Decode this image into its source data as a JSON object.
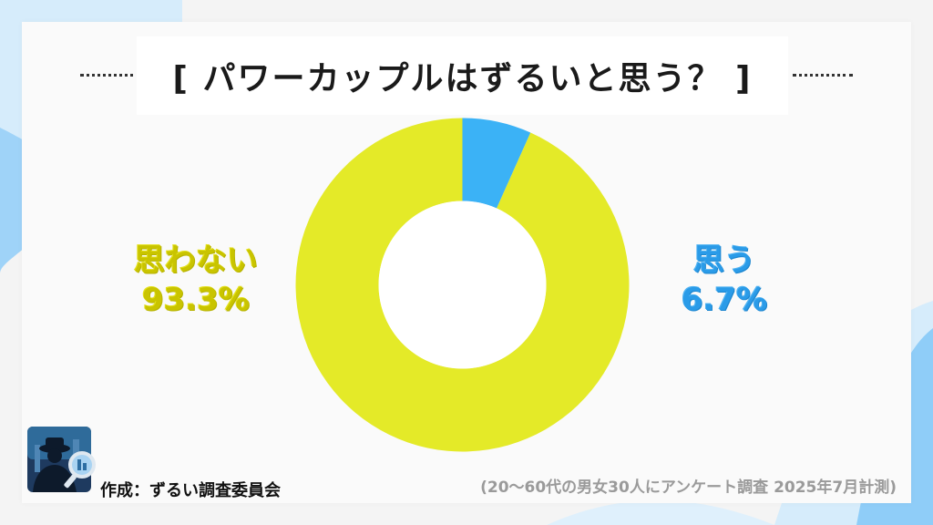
{
  "title": "[ パワーカップルはずるいと思う？ ]",
  "chart_data": {
    "type": "pie",
    "donut": true,
    "categories": [
      "思う",
      "思わない"
    ],
    "values": [
      6.7,
      93.3
    ],
    "value_labels": [
      "6.7%",
      "93.3%"
    ],
    "colors": [
      "#3bb2f6",
      "#e4ea28"
    ]
  },
  "labels": {
    "yes": {
      "name": "思う",
      "pct": "6.7%"
    },
    "no": {
      "name": "思わない",
      "pct": "93.3%"
    }
  },
  "credit": "作成：ずるい調査委員会",
  "footnote": "(20～60代の男女30人にアンケート調査 2025年7月計測)",
  "logo": {
    "icon": "detective-magnifier-icon"
  }
}
